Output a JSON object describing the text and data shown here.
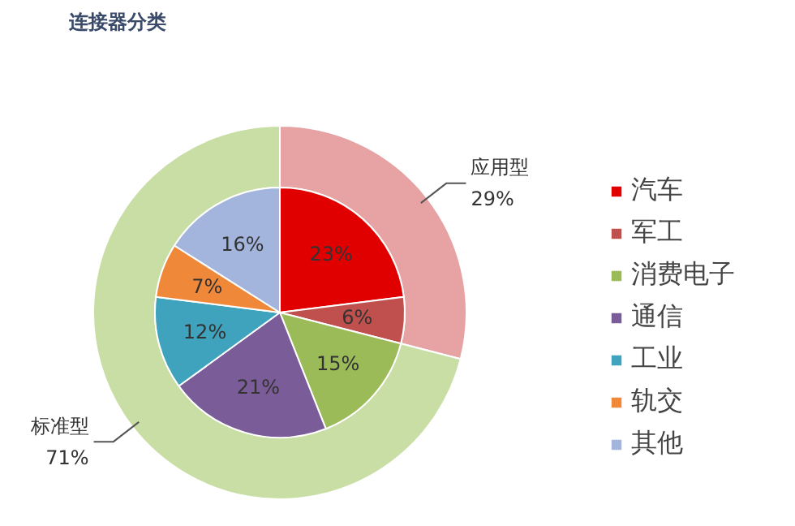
{
  "chart_data": {
    "type": "pie",
    "title": "连接器分类",
    "legend": "right",
    "categories": [
      "汽车",
      "军工",
      "消费电子",
      "通信",
      "工业",
      "轨交",
      "其他"
    ],
    "series": [
      {
        "type": "pie",
        "values": [
          23,
          6,
          15,
          21,
          12,
          7,
          16
        ],
        "colors": [
          "#e00000",
          "#c0504d",
          "#9bbb59",
          "#7a5c99",
          "#3fa3bd",
          "#f0883a",
          "#a3b5dc"
        ],
        "value_labels": [
          "23%",
          "6%",
          "15%",
          "21%",
          "12%",
          "7%",
          "16%"
        ]
      },
      {
        "type": "donut",
        "values": [
          29,
          null,
          71,
          null,
          null,
          null,
          null
        ],
        "colors": [
          "#e7a3a3",
          null,
          "#c8dea4",
          null,
          null,
          null,
          null
        ],
        "value_labels": [
          "应用型\n29%",
          null,
          "标准型\n71%",
          null,
          null,
          null,
          null
        ]
      }
    ]
  }
}
